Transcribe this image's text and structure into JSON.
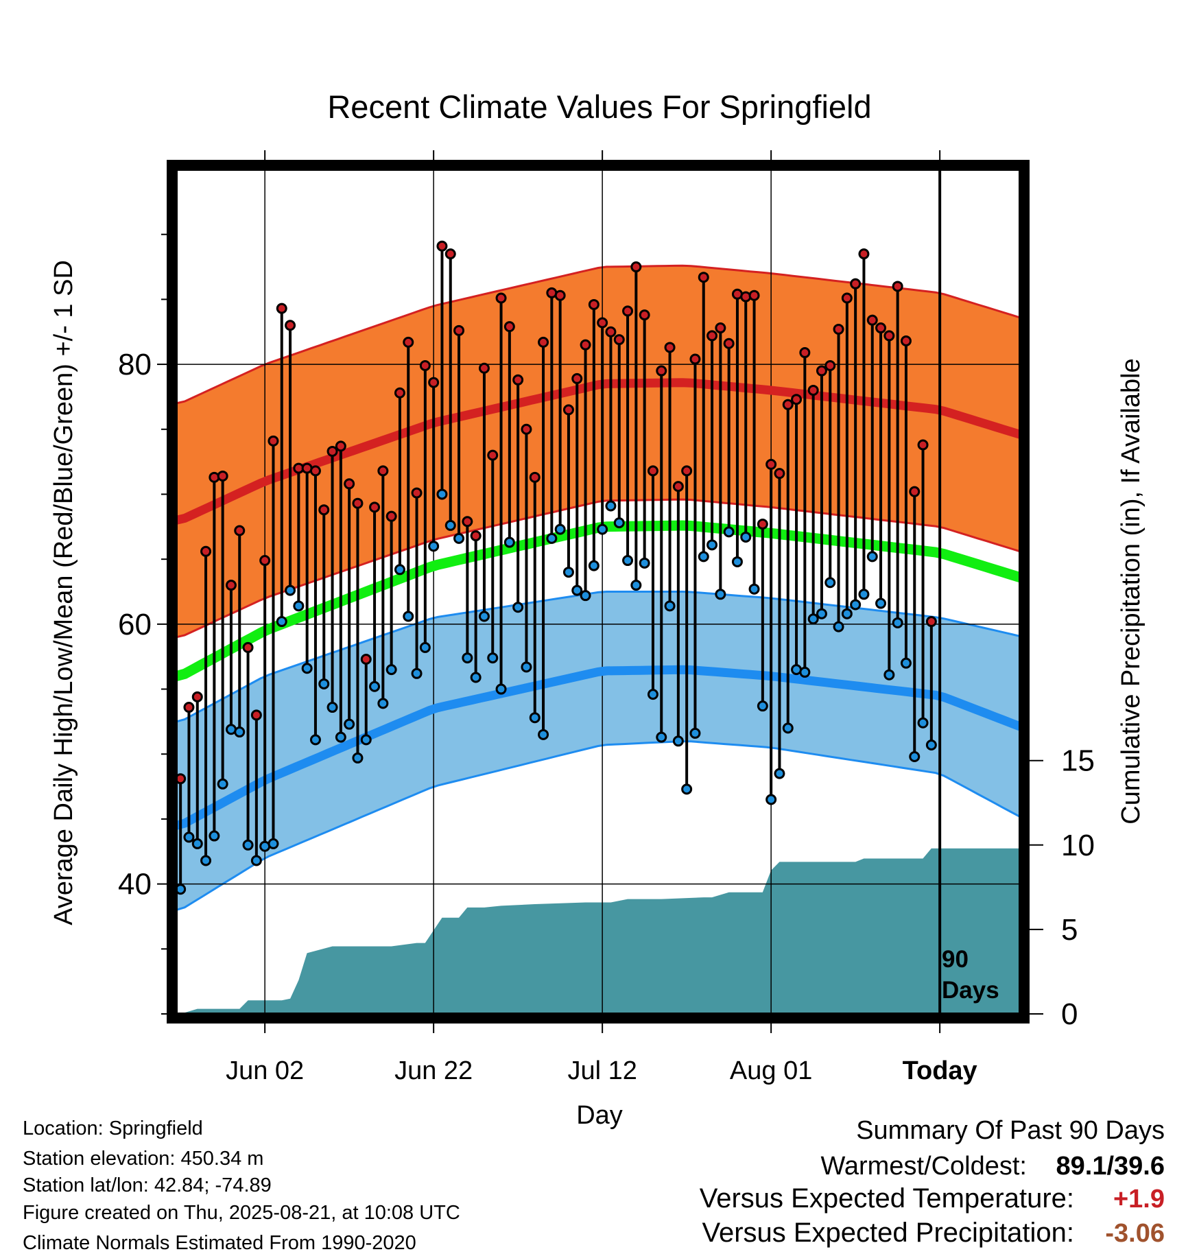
{
  "chart_data": {
    "type": "line",
    "title": "Recent Climate Values For Springfield",
    "xlabel": "Day",
    "ylabel_left": "Average Daily High/Low/Mean (Red/Blue/Green) +/- 1 SD",
    "ylabel_right": "Cumulative Precipitation (in), If Available",
    "x_ticks": [
      "Jun 02",
      "Jun 22",
      "Jul 12",
      "Aug 01",
      "Today"
    ],
    "x_tick_day_index": [
      10,
      30,
      50,
      70,
      90
    ],
    "x_range": [
      -0.5,
      99.5
    ],
    "temp_ylim": [
      30,
      95
    ],
    "temp_ticks": [
      40,
      60,
      80
    ],
    "precip_ylim": [
      0,
      50
    ],
    "precip_ticks": [
      0,
      5,
      10,
      15
    ],
    "today_index": 90,
    "today_marker_label": [
      "90",
      "Days"
    ],
    "grid": true,
    "colors": {
      "high_band": "#f47b2e",
      "high_mean": "#d42121",
      "low_band": "#83c0e6",
      "low_mean": "#1e8cf0",
      "normal_mean": "#11ee11",
      "precip": "#4797a1",
      "high_dot": "#c81f25",
      "low_dot": "#1e8fdc",
      "anomaly_temp": "#c81f25",
      "anomaly_precip": "#a0522d"
    },
    "normal_high_days": [
      0,
      10,
      30,
      50,
      60,
      70,
      90,
      100
    ],
    "normal_high_mean": [
      68,
      71,
      75.5,
      78.5,
      78.6,
      78,
      76.5,
      74.5
    ],
    "normal_high_sd": 9,
    "normal_low_days": [
      0,
      10,
      30,
      50,
      60,
      70,
      90,
      100
    ],
    "normal_low_mean": [
      44.5,
      48,
      53.5,
      56.4,
      56.5,
      56,
      54.5,
      52
    ],
    "normal_low_sd_minus": [
      38,
      42,
      47.5,
      50.7,
      51,
      50.5,
      48.5,
      45
    ],
    "normal_low_sd_plus": [
      52.5,
      56,
      60.5,
      62.5,
      62.5,
      62,
      60.5,
      59
    ],
    "normal_mean_values": [
      56,
      59.5,
      64.5,
      67.5,
      67.6,
      67,
      65.5,
      63.5
    ],
    "series": [
      {
        "name": "High",
        "values": [
          48.1,
          53.6,
          54.4,
          65.6,
          71.3,
          71.4,
          63.0,
          67.2,
          58.2,
          53.0,
          64.9,
          74.1,
          84.3,
          83.0,
          72.0,
          72.0,
          71.8,
          68.8,
          73.3,
          73.7,
          70.8,
          69.3,
          57.3,
          69.0,
          71.8,
          68.3,
          77.8,
          81.7,
          70.1,
          79.9,
          78.6,
          89.1,
          88.5,
          82.6,
          67.9,
          66.8,
          79.7,
          73.0,
          85.1,
          82.9,
          78.8,
          75.0,
          71.3,
          81.7,
          85.5,
          85.3,
          76.5,
          78.9,
          81.5,
          84.6,
          83.2,
          82.5,
          81.9,
          84.1,
          87.5,
          83.8,
          71.8,
          79.5,
          81.3,
          70.6,
          71.8,
          80.4,
          86.7,
          82.2,
          82.8,
          81.6,
          85.4,
          85.2,
          85.3,
          67.7,
          72.3,
          71.6,
          76.9,
          77.3,
          80.9,
          78.0,
          79.5,
          79.9,
          82.7,
          85.1,
          86.2,
          88.5,
          83.4,
          82.8,
          82.2,
          86.0,
          81.8,
          70.2,
          73.8,
          60.2
        ]
      },
      {
        "name": "Low",
        "values": [
          39.6,
          43.6,
          43.1,
          41.8,
          43.7,
          47.7,
          51.9,
          51.7,
          43.0,
          41.8,
          42.9,
          43.1,
          60.2,
          62.6,
          61.4,
          56.6,
          51.1,
          55.4,
          53.6,
          51.3,
          52.3,
          49.7,
          51.1,
          55.2,
          53.9,
          56.5,
          64.2,
          60.6,
          56.2,
          58.2,
          66.0,
          70.0,
          67.6,
          66.6,
          57.4,
          55.9,
          60.6,
          57.4,
          55.0,
          66.3,
          61.3,
          56.7,
          52.8,
          51.5,
          66.6,
          67.3,
          64.0,
          62.6,
          62.2,
          64.5,
          67.3,
          69.1,
          67.8,
          64.9,
          63.0,
          64.7,
          54.6,
          51.3,
          61.4,
          51.0,
          47.3,
          51.6,
          65.2,
          66.1,
          62.3,
          67.1,
          64.8,
          66.7,
          62.7,
          53.7,
          46.5,
          48.5,
          52.0,
          56.5,
          56.3,
          60.4,
          60.8,
          63.2,
          59.8,
          60.8,
          61.5,
          62.3,
          65.2,
          61.6,
          56.1,
          60.1,
          57.0,
          49.8,
          52.4,
          50.7
        ]
      },
      {
        "name": "Cumulative Precipitation",
        "days": [
          0,
          2,
          7,
          8,
          12,
          13,
          14,
          15,
          18,
          21,
          25,
          28,
          29,
          31,
          33,
          34,
          36,
          38,
          42,
          48,
          51,
          53,
          57,
          62,
          63,
          65,
          67,
          69,
          70,
          71,
          72,
          80,
          81,
          84,
          85,
          88,
          89,
          99
        ],
        "values": [
          0.0,
          0.3,
          0.3,
          0.8,
          0.8,
          0.9,
          2.0,
          3.6,
          4.0,
          4.0,
          4.0,
          4.2,
          4.2,
          5.7,
          5.7,
          6.3,
          6.3,
          6.4,
          6.5,
          6.6,
          6.6,
          6.8,
          6.8,
          6.9,
          6.9,
          7.2,
          7.2,
          7.2,
          8.5,
          9.0,
          9.0,
          9.0,
          9.2,
          9.2,
          9.2,
          9.2,
          9.8,
          9.8
        ]
      }
    ]
  },
  "footer_left": {
    "location": "Location: Springfield",
    "elevation": "Station elevation: 450.34 m",
    "latlon": "Station lat/lon: 42.84; -74.89",
    "created": "Figure created on Thu, 2025-08-21, at 10:08 UTC",
    "normals": "Climate Normals Estimated From 1990-2020"
  },
  "summary": {
    "title": "Summary Of Past 90 Days",
    "warmest_label": "Warmest/Coldest:",
    "warmest_value": "89.1/39.6",
    "vs_temp_label": "Versus Expected Temperature:",
    "vs_temp_value": "+1.9",
    "vs_precip_label": "Versus Expected Precipitation:",
    "vs_precip_value": "-3.06"
  }
}
